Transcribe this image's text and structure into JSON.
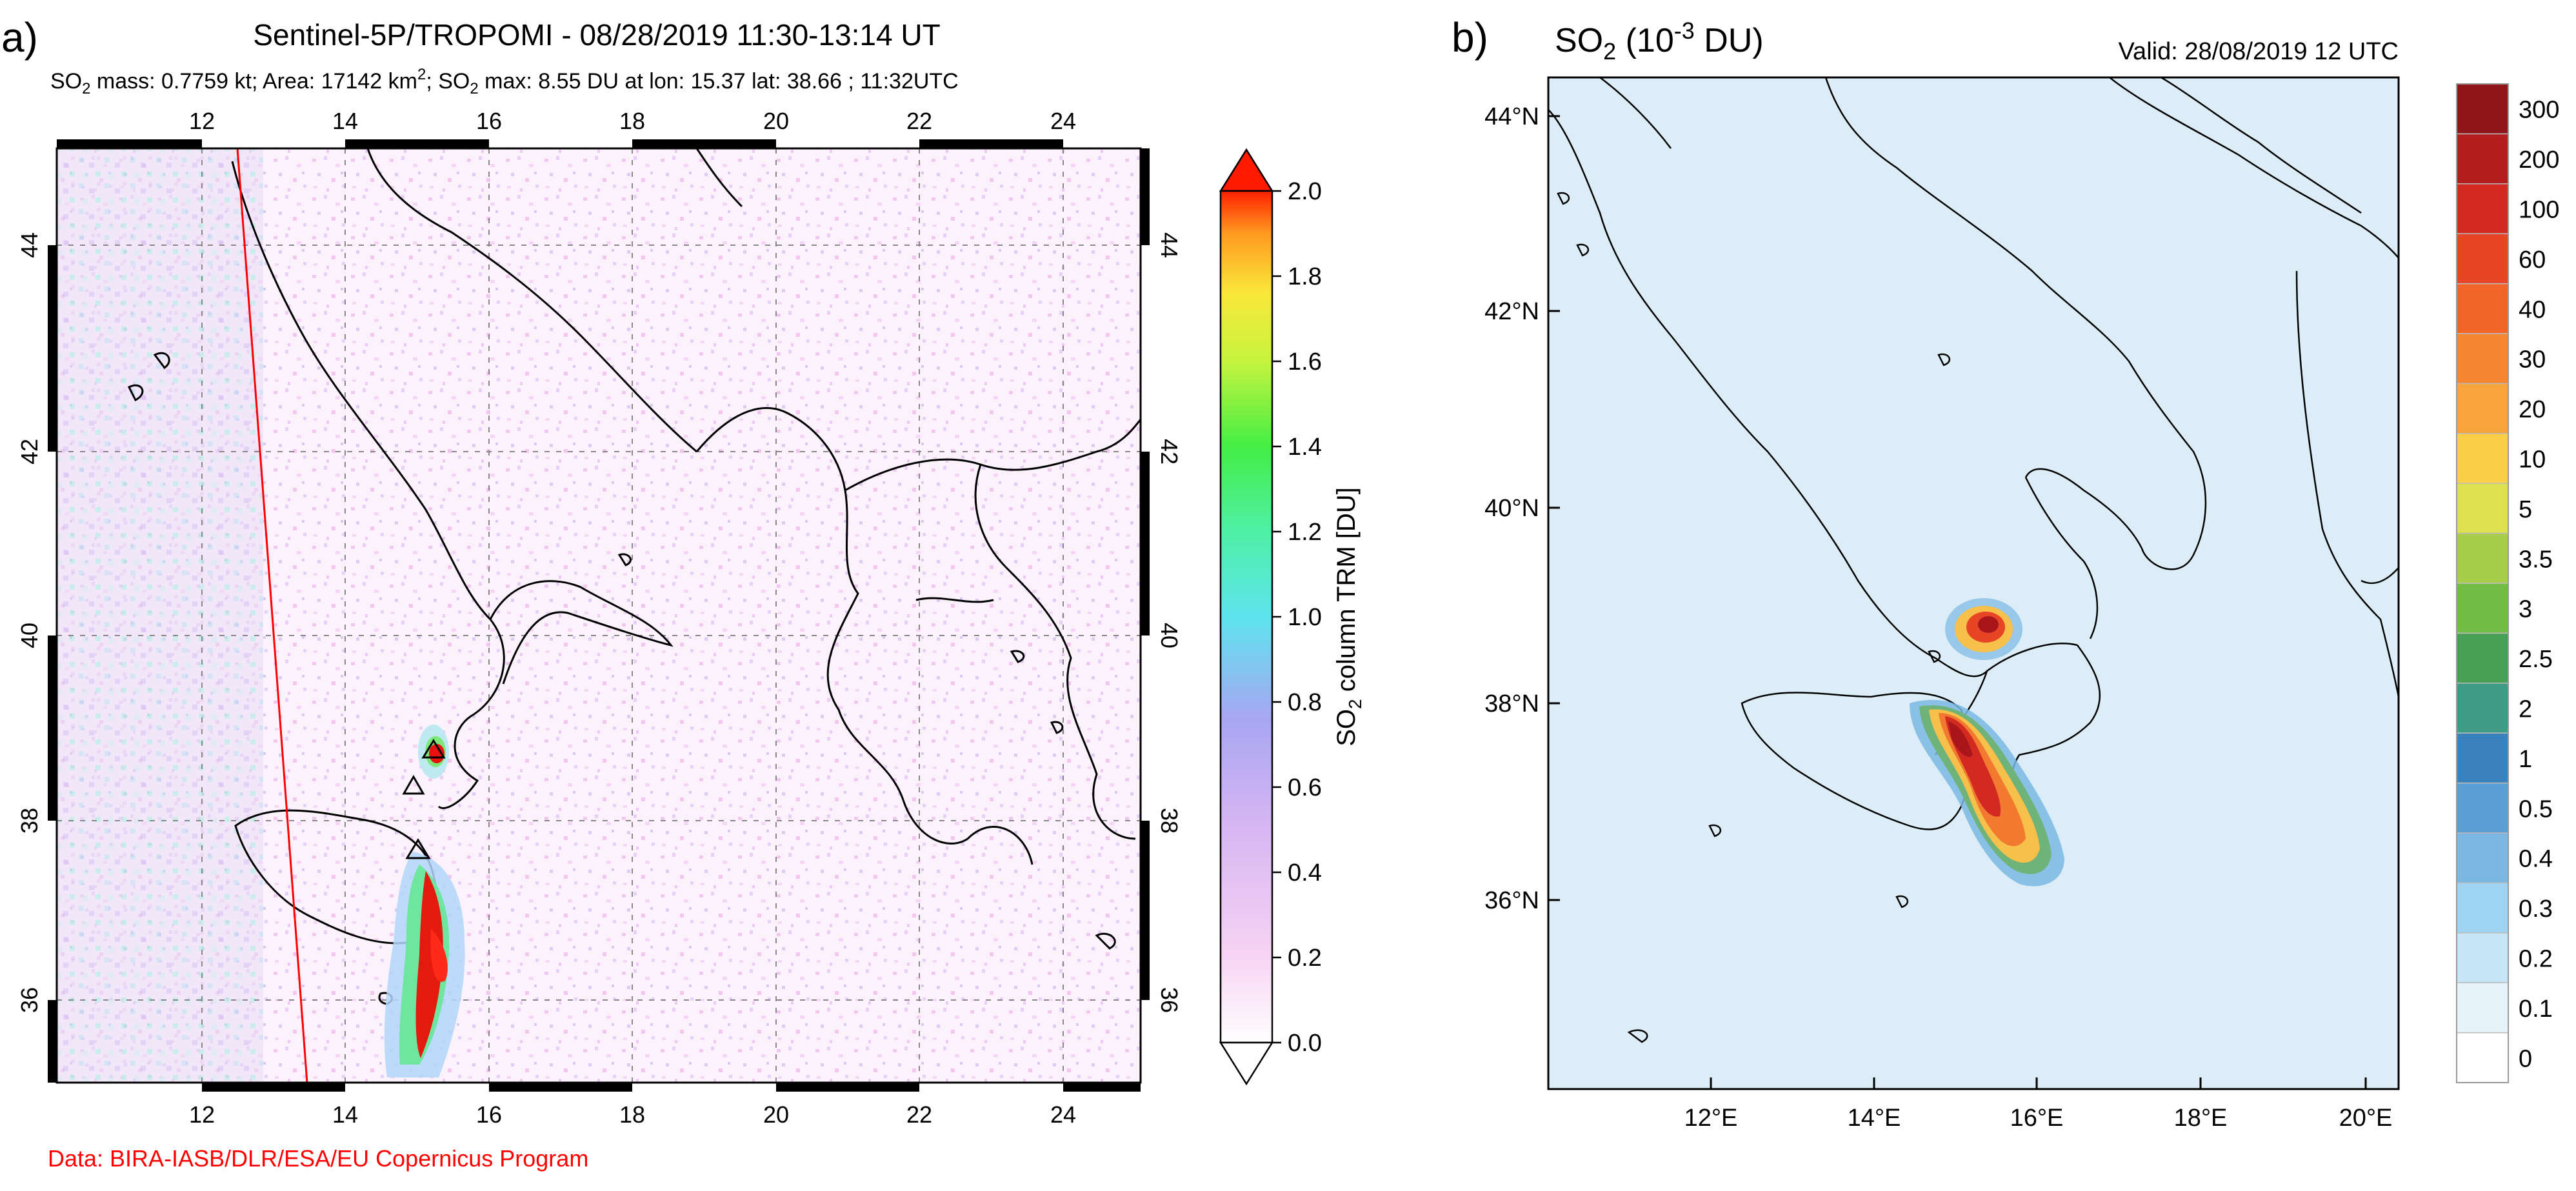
{
  "panel_a": {
    "label": "a)",
    "title": "Sentinel-5P/TROPOMI - 08/28/2019 11:30-13:14 UT",
    "subtitle": {
      "p1": "SO",
      "s1": "2",
      "p2": " mass: 0.7759 kt; Area: 17142 km",
      "s2": "2",
      "p3": "; SO",
      "s3": "2",
      "p4": " max: 8.55 DU at lon: 15.37 lat: 38.66 ; 11:32UTC"
    },
    "lon_ticks": [
      "12",
      "14",
      "16",
      "18",
      "20",
      "22",
      "24"
    ],
    "lat_ticks": [
      "36",
      "38",
      "40",
      "42",
      "44"
    ],
    "credit": "Data: BIRA-IASB/DLR/ESA/EU Copernicus Program",
    "colorbar": {
      "ticks": [
        "0.0",
        "0.2",
        "0.4",
        "0.6",
        "0.8",
        "1.0",
        "1.2",
        "1.4",
        "1.6",
        "1.8",
        "2.0"
      ],
      "label_prefix": "SO",
      "label_sub": "2",
      "label_suffix": " column TRM [DU]"
    },
    "colors": {
      "land_line": "#000000",
      "track": "#ff0000",
      "plume_high": "#e81010",
      "plume_mid": "#3fd05a",
      "plume_low": "#9a9af2"
    }
  },
  "panel_b": {
    "label": "b)",
    "title_prefix": "SO",
    "title_sub": "2",
    "title_unit_pre": " (10",
    "title_sup": "-3",
    "title_unit_post": " DU)",
    "valid": "Valid: 28/08/2019  12 UTC",
    "lat_ticks": [
      "36°N",
      "38°N",
      "40°N",
      "42°N",
      "44°N"
    ],
    "lon_ticks": [
      "12°E",
      "14°E",
      "16°E",
      "18°E",
      "20°E"
    ],
    "colorbar": {
      "labels": [
        "0",
        "0.1",
        "0.2",
        "0.3",
        "0.4",
        "0.5",
        "1",
        "2",
        "2.5",
        "3",
        "3.5",
        "5",
        "10",
        "20",
        "30",
        "40",
        "60",
        "100",
        "200",
        "300"
      ],
      "colors": [
        "#ffffff",
        "#e6f3fb",
        "#c6e6f8",
        "#9fd3f2",
        "#7ab8e3",
        "#5a9fd4",
        "#3a82bd",
        "#3f9a86",
        "#45a055",
        "#72bd45",
        "#a8cd4b",
        "#dde050",
        "#fccf48",
        "#f8a63c",
        "#f58530",
        "#f26428",
        "#e74526",
        "#d22a20",
        "#b51c1c",
        "#8f1518"
      ]
    },
    "colors": {
      "sea": "#dcedf8",
      "plume_core": "#b5161c"
    }
  }
}
